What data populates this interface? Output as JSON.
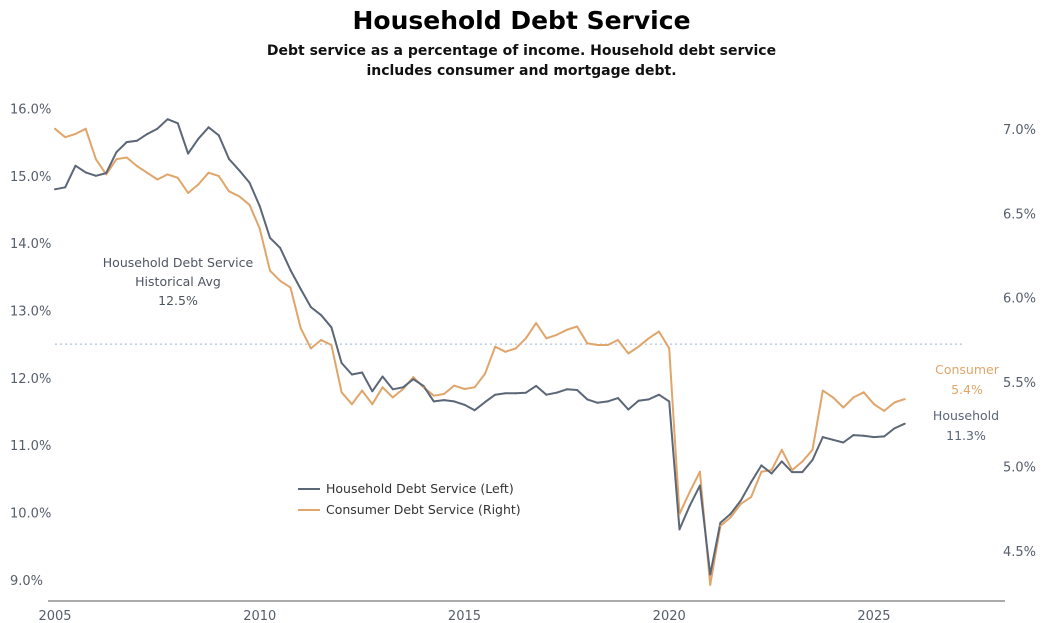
{
  "chart_data": {
    "type": "line",
    "title": "Household Debt Service",
    "subtitle_lines": [
      "Debt service as a percentage of income. Household debt service",
      "includes consumer and mortgage debt."
    ],
    "x_ticks": [
      "2005",
      "2010",
      "2015",
      "2020",
      "2025"
    ],
    "xlim": [
      2005,
      2028.2
    ],
    "y_left_ticks": [
      "16.0%",
      "15.0%",
      "14.0%",
      "13.0%",
      "12.0%",
      "11.0%",
      "10.0%",
      "9.0%"
    ],
    "y_left_lim": [
      8.85,
      16.2
    ],
    "y_right_ticks": [
      "7.0%",
      "6.5%",
      "6.0%",
      "5.5%",
      "5.0%",
      "4.5%"
    ],
    "y_right_lim": [
      4.27,
      7.2
    ],
    "grid": false,
    "series": [
      {
        "name": "Household Debt Service (Left)",
        "axis": "left",
        "color": "#5b6677",
        "x": [
          2005.0,
          2005.25,
          2005.5,
          2005.75,
          2006.0,
          2006.25,
          2006.5,
          2006.75,
          2007.0,
          2007.25,
          2007.5,
          2007.75,
          2008.0,
          2008.25,
          2008.5,
          2008.75,
          2009.0,
          2009.25,
          2009.5,
          2009.75,
          2010.0,
          2010.25,
          2010.5,
          2010.75,
          2011.0,
          2011.25,
          2011.5,
          2011.75,
          2012.0,
          2012.25,
          2012.5,
          2012.75,
          2013.0,
          2013.25,
          2013.5,
          2013.75,
          2014.0,
          2014.25,
          2014.5,
          2014.75,
          2015.0,
          2015.25,
          2015.5,
          2015.75,
          2016.0,
          2016.25,
          2016.5,
          2016.75,
          2017.0,
          2017.25,
          2017.5,
          2017.75,
          2018.0,
          2018.25,
          2018.5,
          2018.75,
          2019.0,
          2019.25,
          2019.5,
          2019.75,
          2020.0,
          2020.25,
          2020.5,
          2020.75,
          2021.0,
          2021.25,
          2021.5,
          2021.75,
          2022.0,
          2022.25,
          2022.5,
          2022.75,
          2023.0,
          2023.25,
          2023.5,
          2023.75,
          2024.0,
          2024.25,
          2024.5,
          2024.75,
          2025.0,
          2025.25,
          2025.5,
          2025.75
        ],
        "values": [
          14.8,
          14.83,
          15.15,
          15.05,
          15.0,
          15.04,
          15.35,
          15.5,
          15.52,
          15.62,
          15.7,
          15.84,
          15.78,
          15.33,
          15.55,
          15.72,
          15.6,
          15.25,
          15.08,
          14.9,
          14.55,
          14.08,
          13.93,
          13.6,
          13.32,
          13.05,
          12.93,
          12.75,
          12.22,
          12.05,
          12.08,
          11.8,
          12.02,
          11.83,
          11.86,
          11.98,
          11.88,
          11.65,
          11.67,
          11.65,
          11.6,
          11.52,
          11.64,
          11.75,
          11.77,
          11.77,
          11.78,
          11.88,
          11.75,
          11.78,
          11.83,
          11.82,
          11.68,
          11.63,
          11.65,
          11.7,
          11.53,
          11.66,
          11.68,
          11.75,
          11.65,
          9.75,
          10.1,
          10.4,
          9.08,
          9.85,
          9.98,
          10.18,
          10.45,
          10.7,
          10.58,
          10.76,
          10.6,
          10.6,
          10.78,
          11.12,
          11.08,
          11.04,
          11.15,
          11.14,
          11.12,
          11.13,
          11.25,
          11.32
        ]
      },
      {
        "name": "Consumer Debt Service (Right)",
        "axis": "right",
        "color": "#e0a56a",
        "x": [
          2005.0,
          2005.25,
          2005.5,
          2005.75,
          2006.0,
          2006.25,
          2006.5,
          2006.75,
          2007.0,
          2007.25,
          2007.5,
          2007.75,
          2008.0,
          2008.25,
          2008.5,
          2008.75,
          2009.0,
          2009.25,
          2009.5,
          2009.75,
          2010.0,
          2010.25,
          2010.5,
          2010.75,
          2011.0,
          2011.25,
          2011.5,
          2011.75,
          2012.0,
          2012.25,
          2012.5,
          2012.75,
          2013.0,
          2013.25,
          2013.5,
          2013.75,
          2014.0,
          2014.25,
          2014.5,
          2014.75,
          2015.0,
          2015.25,
          2015.5,
          2015.75,
          2016.0,
          2016.25,
          2016.5,
          2016.75,
          2017.0,
          2017.25,
          2017.5,
          2017.75,
          2018.0,
          2018.25,
          2018.5,
          2018.75,
          2019.0,
          2019.25,
          2019.5,
          2019.75,
          2020.0,
          2020.25,
          2020.5,
          2020.75,
          2021.0,
          2021.25,
          2021.5,
          2021.75,
          2022.0,
          2022.25,
          2022.5,
          2022.75,
          2023.0,
          2023.25,
          2023.5,
          2023.75,
          2024.0,
          2024.25,
          2024.5,
          2024.75,
          2025.0,
          2025.25,
          2025.5,
          2025.75
        ],
        "values": [
          7.0,
          6.95,
          6.97,
          7.0,
          6.82,
          6.73,
          6.82,
          6.83,
          6.78,
          6.74,
          6.7,
          6.73,
          6.71,
          6.62,
          6.67,
          6.74,
          6.72,
          6.63,
          6.6,
          6.55,
          6.41,
          6.16,
          6.1,
          6.06,
          5.82,
          5.7,
          5.75,
          5.72,
          5.44,
          5.37,
          5.45,
          5.37,
          5.47,
          5.41,
          5.46,
          5.53,
          5.47,
          5.42,
          5.43,
          5.48,
          5.46,
          5.47,
          5.55,
          5.71,
          5.68,
          5.7,
          5.76,
          5.85,
          5.76,
          5.78,
          5.81,
          5.83,
          5.73,
          5.72,
          5.72,
          5.75,
          5.67,
          5.71,
          5.76,
          5.8,
          5.7,
          4.72,
          4.85,
          4.97,
          4.3,
          4.65,
          4.7,
          4.78,
          4.82,
          4.97,
          4.98,
          5.1,
          4.98,
          5.03,
          5.1,
          5.45,
          5.41,
          5.35,
          5.41,
          5.44,
          5.37,
          5.33,
          5.38,
          5.4
        ]
      }
    ],
    "reference_line": {
      "axis": "left",
      "value": 12.5,
      "style": "dotted",
      "color": "#9db4d6"
    },
    "annotations": {
      "avg_lines": [
        "Household Debt Service",
        "Historical Avg",
        "12.5%"
      ],
      "consumer_lines": [
        "Consumer",
        "5.4%"
      ],
      "household_lines": [
        "Household",
        "11.3%"
      ]
    },
    "legend": {
      "placement": "lower-left",
      "items": [
        "Household Debt Service (Left)",
        "Consumer Debt Service (Right)"
      ]
    }
  }
}
